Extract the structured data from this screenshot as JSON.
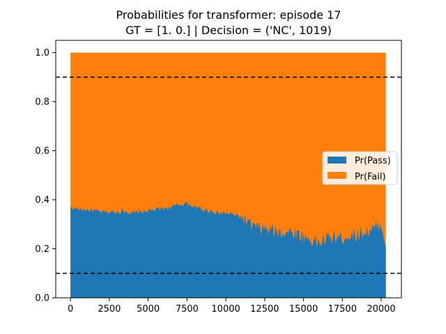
{
  "chart_data": {
    "type": "area",
    "title_line1": "Probabilities for transformer: episode 17",
    "title_line2": "GT = [1. 0.] | Decision = ('NC', 1019)",
    "xlabel": "",
    "ylabel": "",
    "xlim": [
      -950,
      21300
    ],
    "ylim": [
      0,
      1.05
    ],
    "x_ticks": [
      0,
      2500,
      5000,
      7500,
      10000,
      12500,
      15000,
      17500,
      20000
    ],
    "y_ticks": [
      0.0,
      0.2,
      0.4,
      0.6,
      0.8,
      1.0
    ],
    "x_tick_labels": [
      "0",
      "2500",
      "5000",
      "7500",
      "10000",
      "12500",
      "15000",
      "17500",
      "20000"
    ],
    "y_tick_labels": [
      "0.0",
      "0.2",
      "0.4",
      "0.6",
      "0.8",
      "1.0"
    ],
    "thresholds": [
      0.1,
      0.9
    ],
    "legend_position": "center-right",
    "stacked": true,
    "series": [
      {
        "name": "Pr(Pass)",
        "color": "#1f77b4"
      },
      {
        "name": "Pr(Fail)",
        "color": "#ff7f0e"
      }
    ],
    "x": [
      0,
      500,
      1000,
      1500,
      2000,
      2500,
      3000,
      3500,
      4000,
      4500,
      5000,
      5500,
      6000,
      6500,
      7000,
      7500,
      8000,
      8500,
      9000,
      9500,
      10000,
      10500,
      11000,
      11500,
      12000,
      12500,
      13000,
      13500,
      14000,
      14500,
      15000,
      15500,
      16000,
      16500,
      17000,
      17500,
      18000,
      18500,
      19000,
      19500,
      20000,
      20300
    ],
    "pass_values": [
      0.37,
      0.36,
      0.36,
      0.355,
      0.35,
      0.35,
      0.35,
      0.355,
      0.345,
      0.35,
      0.355,
      0.36,
      0.365,
      0.37,
      0.38,
      0.385,
      0.37,
      0.36,
      0.355,
      0.345,
      0.345,
      0.34,
      0.33,
      0.3,
      0.285,
      0.28,
      0.275,
      0.27,
      0.27,
      0.265,
      0.25,
      0.235,
      0.225,
      0.24,
      0.25,
      0.245,
      0.255,
      0.26,
      0.27,
      0.28,
      0.3,
      0.22
    ],
    "total_values": 1.0
  }
}
